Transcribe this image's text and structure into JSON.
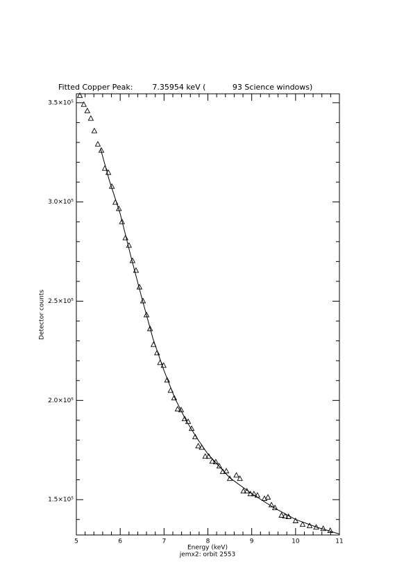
{
  "chart_data": {
    "type": "scatter",
    "title": "Fitted Copper Peak:        7.35954 keV (           93 Science windows)",
    "x_label": "Energy (keV)",
    "subtitle": "jemx2: orbit 2553",
    "y_label": "Detector counts",
    "xlim": [
      5,
      11
    ],
    "ylim": [
      132200,
      354500
    ],
    "xticks": [
      5,
      6,
      7,
      8,
      9,
      10,
      11
    ],
    "xminorticks": [
      5.2,
      5.4,
      5.6,
      5.8,
      6.2,
      6.4,
      6.6,
      6.8,
      7.2,
      7.4,
      7.6,
      7.8,
      8.2,
      8.4,
      8.6,
      8.8,
      9.2,
      9.4,
      9.6,
      9.8,
      10.2,
      10.4,
      10.6,
      10.8
    ],
    "yticks": [
      {
        "value": 150000,
        "label": "1.5×10⁵"
      },
      {
        "value": 200000,
        "label": "2.0×10⁵"
      },
      {
        "value": 250000,
        "label": "2.5×10⁵"
      },
      {
        "value": 300000,
        "label": "3.0×10⁵"
      },
      {
        "value": 350000,
        "label": "3.5×10⁵"
      }
    ],
    "yminorticks": [
      140000,
      160000,
      170000,
      180000,
      190000,
      210000,
      220000,
      230000,
      240000,
      260000,
      270000,
      280000,
      290000,
      310000,
      320000,
      330000,
      340000
    ],
    "color": "#000000",
    "points": {
      "x": [
        5.08,
        5.17,
        5.25,
        5.33,
        5.41,
        5.49,
        5.57,
        5.65,
        5.73,
        5.81,
        5.89,
        5.97,
        6.04,
        6.12,
        6.2,
        6.28,
        6.36,
        6.44,
        6.52,
        6.6,
        6.68,
        6.76,
        6.84,
        6.91,
        6.99,
        7.07,
        7.15,
        7.23,
        7.31,
        7.39,
        7.47,
        7.55,
        7.63,
        7.71,
        7.78,
        7.86,
        7.94,
        8.02,
        8.1,
        8.18,
        8.26,
        8.34,
        8.42,
        8.5,
        8.65,
        8.73,
        8.81,
        8.89,
        8.97,
        9.05,
        9.13,
        9.29,
        9.37,
        9.45,
        9.53,
        9.68,
        9.76,
        9.84,
        10.0,
        10.16,
        10.32,
        10.47,
        10.63,
        10.79
      ],
      "values": [
        353500,
        349000,
        345800,
        342000,
        335700,
        329000,
        325900,
        316800,
        314700,
        307700,
        299700,
        296500,
        289900,
        281800,
        278000,
        270300,
        265400,
        257000,
        250000,
        243000,
        236000,
        228000,
        223800,
        218900,
        217500,
        210100,
        204900,
        201100,
        195500,
        195100,
        190600,
        189200,
        185700,
        181500,
        176900,
        176200,
        171700,
        171700,
        169200,
        168900,
        166800,
        164000,
        164300,
        160500,
        162200,
        160500,
        154200,
        154200,
        152800,
        152800,
        152100,
        150400,
        151100,
        147200,
        145800,
        142000,
        141600,
        141300,
        139200,
        137400,
        136700,
        136000,
        135300,
        134300
      ]
    },
    "fit": {
      "x": [
        5.55,
        5.75,
        6.0,
        6.25,
        6.5,
        6.75,
        7.0,
        7.25,
        7.5,
        7.75,
        8.0,
        8.5,
        9.0,
        9.5,
        10.0,
        10.5,
        11.0
      ],
      "values": [
        327000,
        311000,
        294000,
        272000,
        251000,
        231000,
        215000,
        201000,
        190000,
        181000,
        173000,
        161000,
        153000,
        146000,
        140000,
        136000,
        132700
      ]
    }
  }
}
